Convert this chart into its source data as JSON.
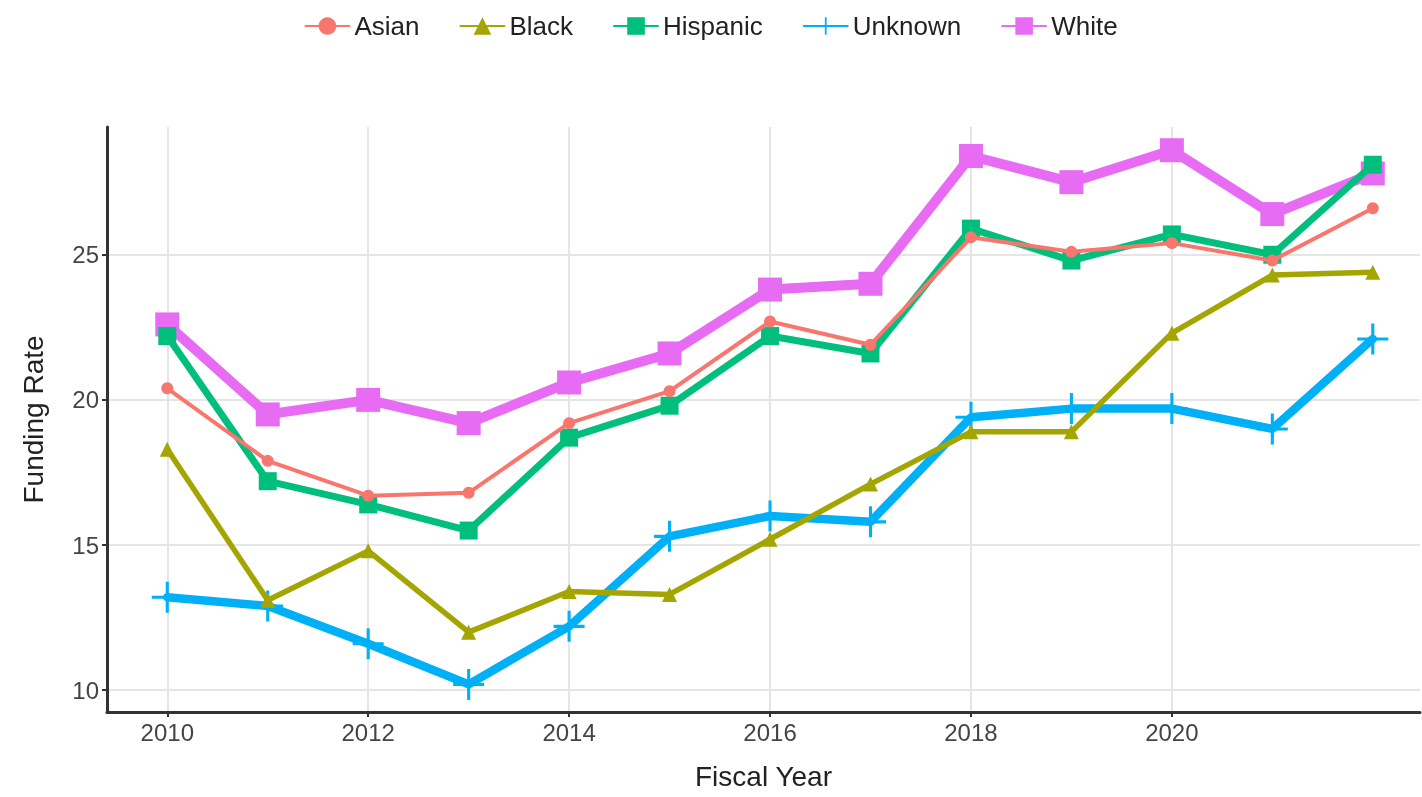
{
  "chart_data": {
    "type": "line",
    "xlabel": "Fiscal Year",
    "ylabel": "Funding Rate",
    "x": [
      2010,
      2011,
      2012,
      2013,
      2014,
      2015,
      2016,
      2017,
      2018,
      2019,
      2020,
      2021,
      2022
    ],
    "xlim": [
      2009.4,
      2022.47
    ],
    "xticks": [
      2010,
      2012,
      2014,
      2016,
      2018,
      2020
    ],
    "ylim": [
      9.25,
      29.4
    ],
    "yticks": [
      10,
      15,
      20,
      25
    ],
    "grid": true,
    "legend": "top",
    "series": [
      {
        "name": "Asian",
        "color": "#f8766d",
        "marker": "circle",
        "values": [
          20.4,
          17.9,
          16.7,
          16.8,
          19.2,
          20.3,
          22.7,
          21.9,
          25.6,
          25.1,
          25.4,
          24.8,
          26.6
        ]
      },
      {
        "name": "Black",
        "color": "#a3a500",
        "marker": "triangle",
        "values": [
          18.3,
          13.1,
          14.8,
          12.0,
          13.4,
          13.3,
          15.2,
          17.1,
          18.9,
          18.9,
          22.3,
          24.3,
          24.4
        ]
      },
      {
        "name": "Hispanic",
        "color": "#00bf7d",
        "marker": "square",
        "values": [
          22.2,
          17.2,
          16.4,
          15.5,
          18.7,
          19.8,
          22.2,
          21.6,
          25.9,
          24.8,
          25.7,
          25.0,
          28.1
        ]
      },
      {
        "name": "Unknown",
        "color": "#00b0f6",
        "marker": "cross",
        "values": [
          13.2,
          12.9,
          11.6,
          10.2,
          12.2,
          15.3,
          16.0,
          15.8,
          19.4,
          19.7,
          19.7,
          19.0,
          22.1
        ]
      },
      {
        "name": "White",
        "color": "#e76bf3",
        "marker": "square",
        "values": [
          22.6,
          19.5,
          20.0,
          19.2,
          20.6,
          21.6,
          23.8,
          24.0,
          28.4,
          27.5,
          28.6,
          26.4,
          27.8
        ]
      }
    ]
  }
}
